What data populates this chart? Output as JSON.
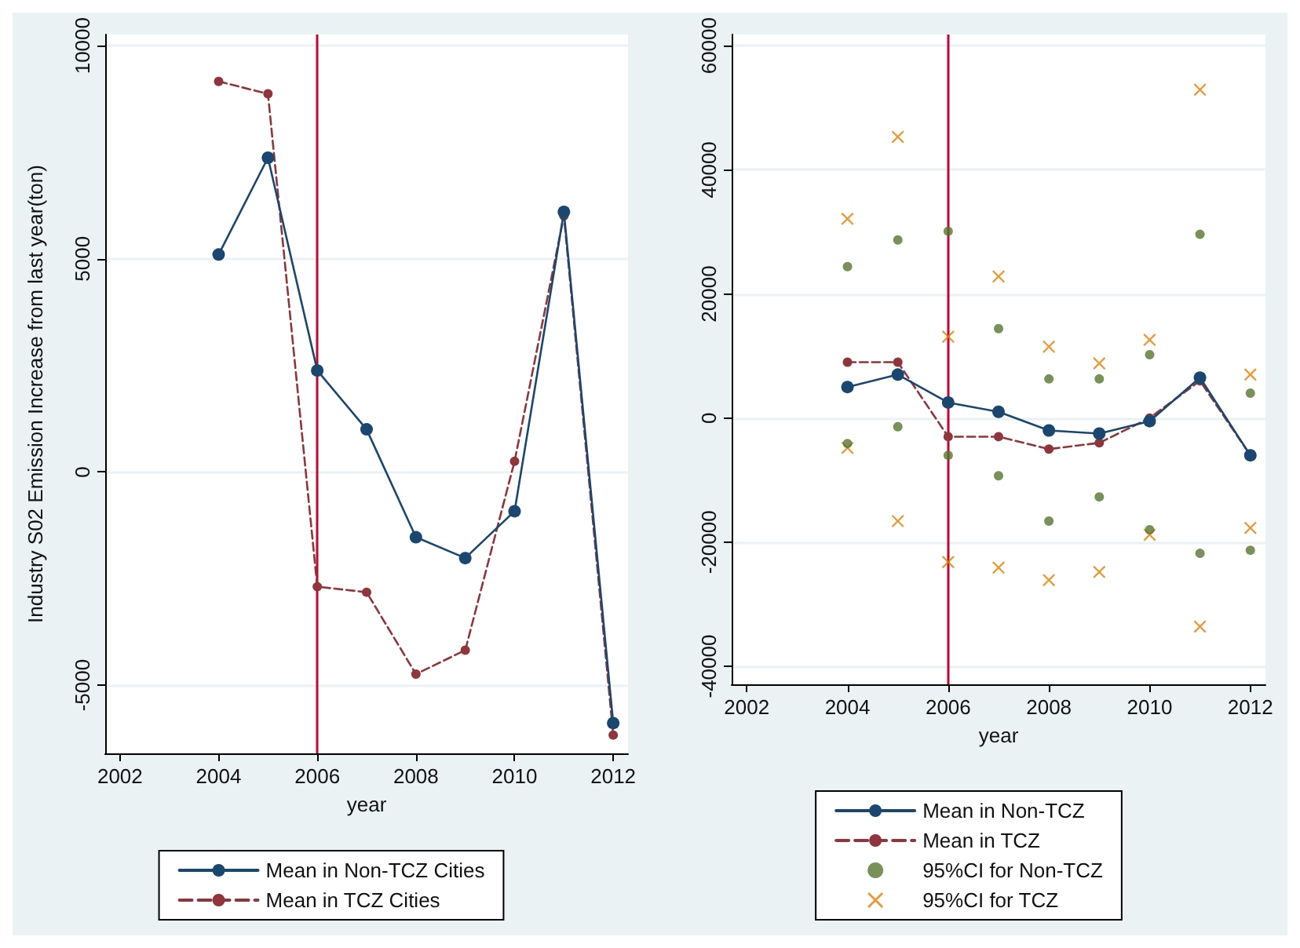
{
  "chart_data": [
    {
      "type": "line",
      "xlabel": "year",
      "ylabel": "Industry S02 Emission Increase from last year(ton)",
      "x": [
        2004,
        2005,
        2006,
        2007,
        2008,
        2009,
        2010,
        2011,
        2012
      ],
      "xlim": [
        2001.7,
        2012.3
      ],
      "xticks": [
        2002,
        2004,
        2006,
        2008,
        2010,
        2012
      ],
      "ylim": [
        -6600,
        10260
      ],
      "yticks": [
        -5000,
        0,
        5000,
        10000
      ],
      "grid": "y",
      "legend": "bottom",
      "ref_lines": [
        {
          "axis": "x",
          "value": 2006,
          "color": "#c10534"
        }
      ],
      "series": [
        {
          "name": "Mean in Non-TCZ Cities",
          "color": "#1a476f",
          "marker": "circle",
          "line_style": "solid",
          "values": [
            5100,
            7370,
            2380,
            1000,
            -1530,
            -2020,
            -920,
            6100,
            -5890
          ]
        },
        {
          "name": "Mean in TCZ Cities",
          "color": "#90353b",
          "marker": "circle",
          "line_style": "dashed",
          "values": [
            9160,
            8870,
            -2690,
            -2820,
            -4740,
            -4180,
            250,
            6010,
            -6170
          ]
        }
      ]
    },
    {
      "type": "line",
      "xlabel": "year",
      "x": [
        2004,
        2005,
        2006,
        2007,
        2008,
        2009,
        2010,
        2011,
        2012
      ],
      "xlim": [
        2001.7,
        2012.3
      ],
      "xticks": [
        2002,
        2004,
        2006,
        2008,
        2010,
        2012
      ],
      "ylim": [
        -42900,
        61800
      ],
      "yticks": [
        -40000,
        -20000,
        0,
        20000,
        40000,
        60000
      ],
      "grid": "y",
      "legend": "bottom",
      "ref_lines": [
        {
          "axis": "x",
          "value": 2006,
          "color": "#c10534"
        }
      ],
      "series": [
        {
          "name": "Mean in Non-TCZ",
          "color": "#1a476f",
          "marker": "circle",
          "line_style": "solid",
          "values": [
            5000,
            7000,
            2500,
            1000,
            -2000,
            -2500,
            -500,
            6500,
            -6000
          ]
        },
        {
          "name": "Mean in TCZ",
          "color": "#90353b",
          "marker": "circle",
          "line_style": "dashed",
          "values": [
            9000,
            9000,
            -3000,
            -3000,
            -5000,
            -4000,
            0,
            6000,
            -6000
          ]
        },
        {
          "name": "95%CI for Non-TCZ",
          "type": "scatter",
          "color": "#55752f",
          "marker": "circle",
          "x": [
            2004,
            2004,
            2005,
            2005,
            2006,
            2006,
            2007,
            2007,
            2008,
            2008,
            2009,
            2009,
            2010,
            2010,
            2011,
            2011,
            2012,
            2012
          ],
          "values": [
            24400,
            -4100,
            28700,
            -1400,
            30100,
            -6000,
            14400,
            -9300,
            6300,
            -16600,
            6300,
            -12700,
            10200,
            -18000,
            29600,
            -21800,
            4000,
            -21300
          ]
        },
        {
          "name": "95%CI for TCZ",
          "type": "scatter",
          "color": "#e37e00",
          "marker": "cross",
          "x": [
            2004,
            2004,
            2005,
            2005,
            2006,
            2006,
            2007,
            2007,
            2008,
            2008,
            2009,
            2009,
            2010,
            2010,
            2011,
            2011,
            2012,
            2012
          ],
          "values": [
            32100,
            -4800,
            45300,
            -16600,
            13100,
            -23200,
            22800,
            -24100,
            11500,
            -26100,
            8800,
            -24800,
            12600,
            -18800,
            52900,
            -33600,
            7000,
            -17700
          ]
        }
      ]
    }
  ]
}
